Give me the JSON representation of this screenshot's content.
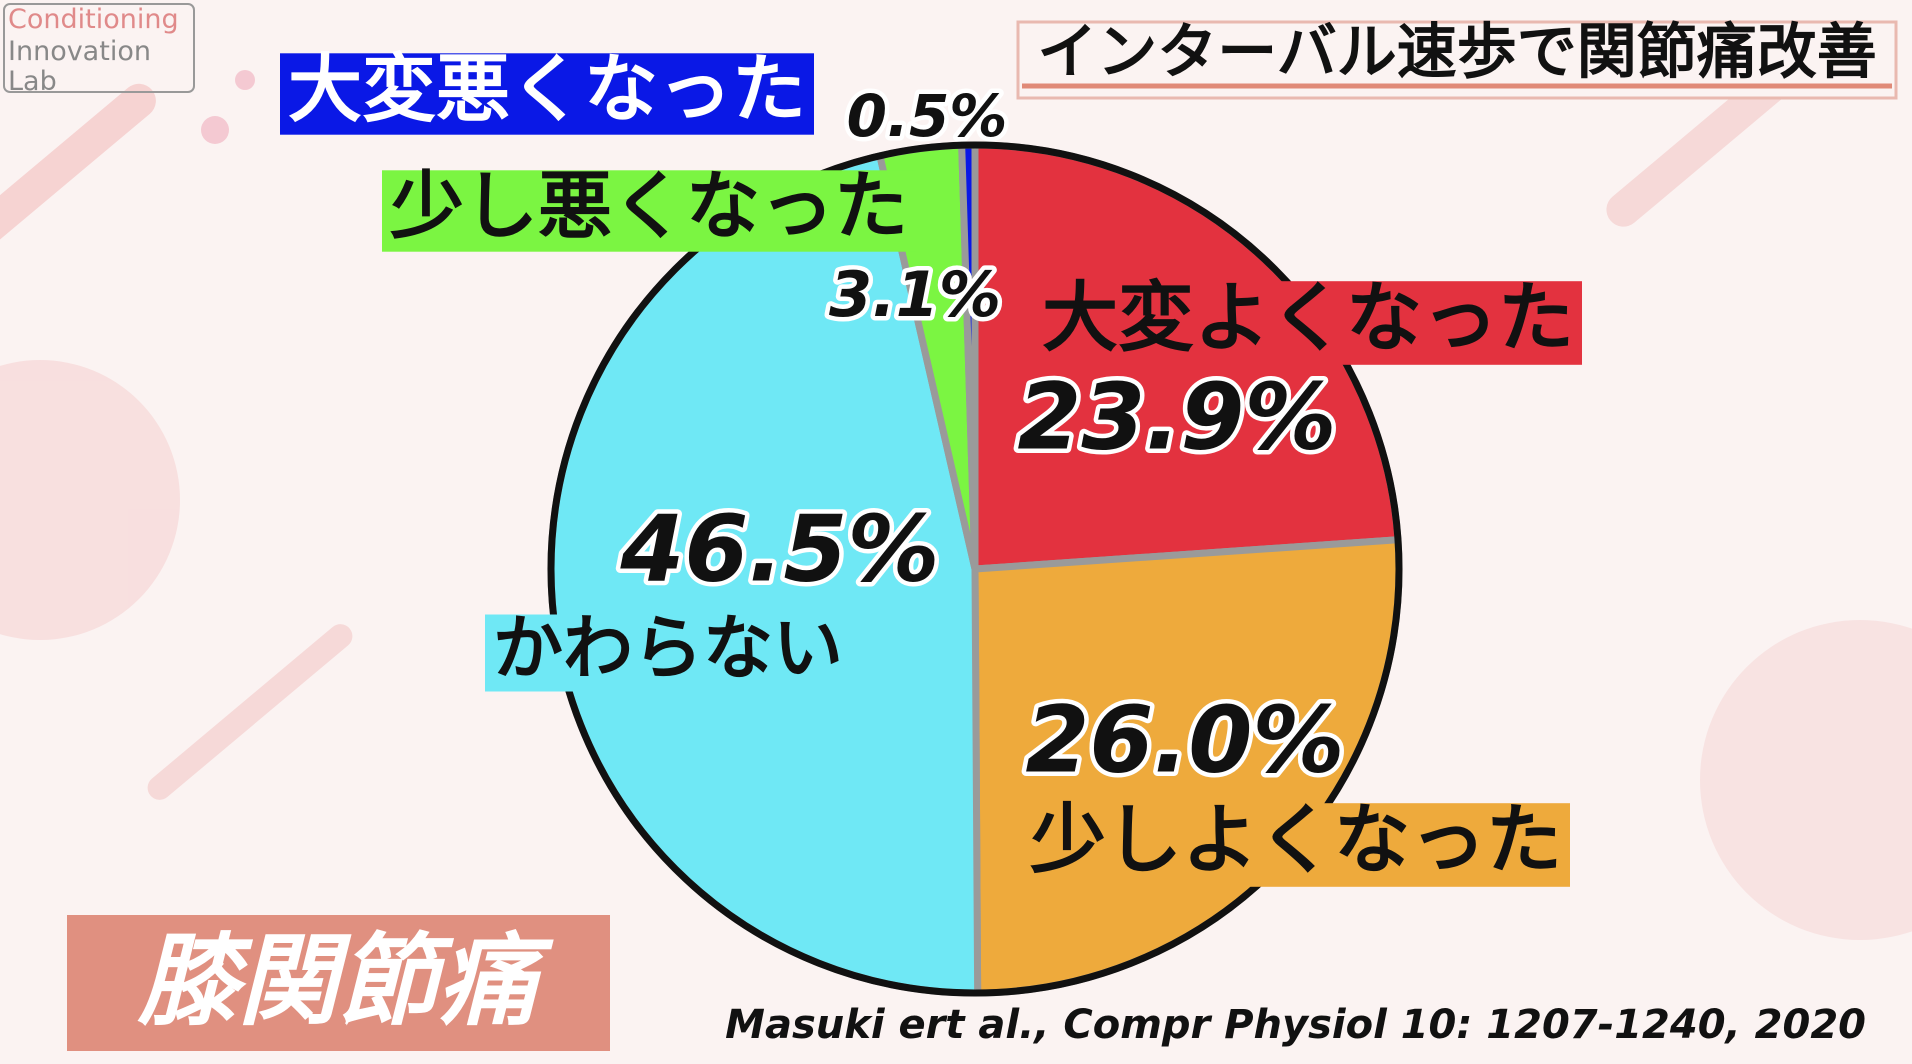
{
  "logo": [
    "Conditioning",
    "Innovation",
    "Lab"
  ],
  "chart_data": {
    "type": "pie",
    "title": "インターバル速歩で関節痛改善",
    "subtitle": "膝関節痛",
    "source": "Masuki ert al., Compr Physiol 10: 1207-1240, 2020",
    "categories": [
      "大変よくなった",
      "少しよくなった",
      "かわらない",
      "少し悪くなった",
      "大変悪くなった"
    ],
    "values": [
      23.9,
      26.0,
      46.5,
      3.1,
      0.5
    ],
    "value_labels": [
      "23.9%",
      "26.0%",
      "46.5%",
      "3.1%",
      "0.5%"
    ],
    "colors": [
      "#e3323f",
      "#eeaa3c",
      "#6fe8f5",
      "#7bf542",
      "#0a18e6"
    ]
  }
}
